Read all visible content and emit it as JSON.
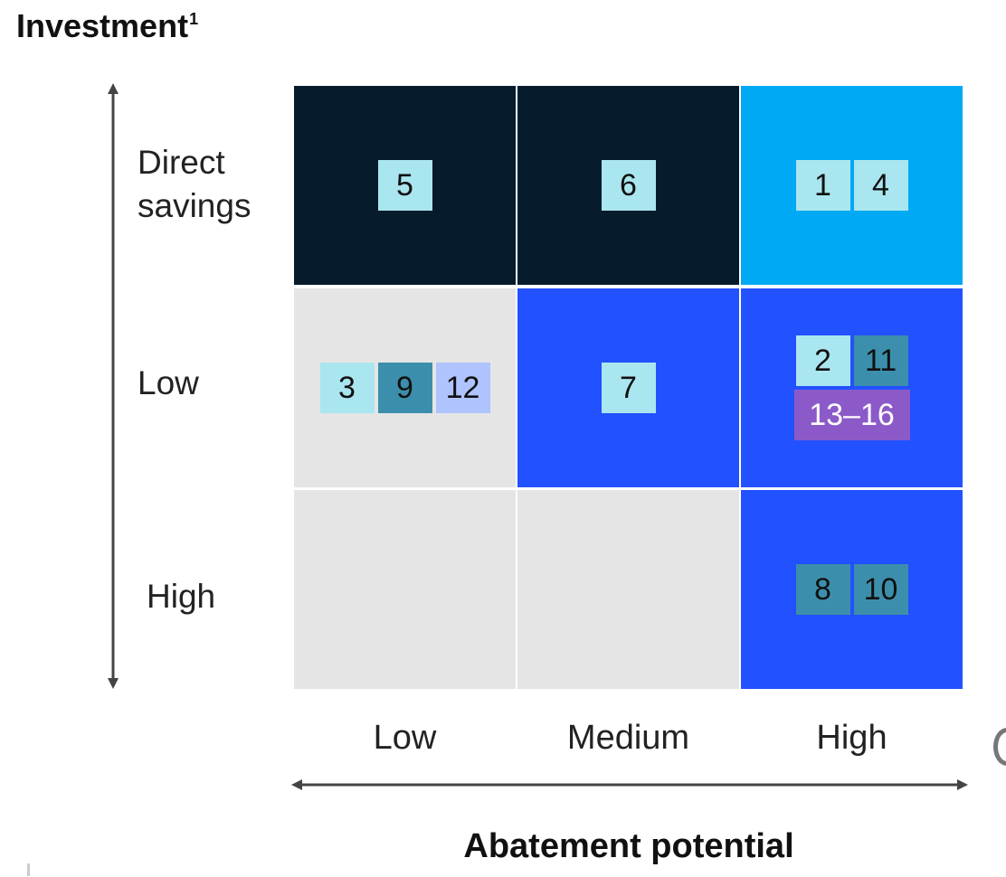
{
  "y_axis_title": "Investment",
  "y_axis_footnote": "1",
  "x_axis_title": "Abatement potential",
  "rows": [
    {
      "label": "Direct savings"
    },
    {
      "label": "Low"
    },
    {
      "label": "High"
    }
  ],
  "columns": [
    {
      "label": "Low"
    },
    {
      "label": "Medium"
    },
    {
      "label": "High"
    }
  ],
  "colors": {
    "dark_navy": "#061c2c",
    "cyan": "#00a9f4",
    "royal_blue": "#2251ff",
    "light_gray": "#e5e5e5",
    "chip_light_cyan": "#aae6f0",
    "chip_teal": "#3c8fac",
    "chip_periwinkle": "#afc3ff",
    "chip_purple": "#8c5ac8",
    "axis": "#444444"
  },
  "cells": [
    {
      "row": 0,
      "col": 0,
      "bg": "dark_navy",
      "chip_rows": [
        [
          {
            "text": "5",
            "color": "chip_light_cyan"
          }
        ]
      ]
    },
    {
      "row": 0,
      "col": 1,
      "bg": "dark_navy",
      "chip_rows": [
        [
          {
            "text": "6",
            "color": "chip_light_cyan"
          }
        ]
      ]
    },
    {
      "row": 0,
      "col": 2,
      "bg": "cyan",
      "chip_rows": [
        [
          {
            "text": "1",
            "color": "chip_light_cyan"
          },
          {
            "text": "4",
            "color": "chip_light_cyan"
          }
        ]
      ]
    },
    {
      "row": 1,
      "col": 0,
      "bg": "light_gray",
      "chip_rows": [
        [
          {
            "text": "3",
            "color": "chip_light_cyan"
          },
          {
            "text": "9",
            "color": "chip_teal"
          },
          {
            "text": "12",
            "color": "chip_periwinkle"
          }
        ]
      ]
    },
    {
      "row": 1,
      "col": 1,
      "bg": "royal_blue",
      "chip_rows": [
        [
          {
            "text": "7",
            "color": "chip_light_cyan"
          }
        ]
      ]
    },
    {
      "row": 1,
      "col": 2,
      "bg": "royal_blue",
      "chip_rows": [
        [
          {
            "text": "2",
            "color": "chip_light_cyan"
          },
          {
            "text": "11",
            "color": "chip_teal"
          }
        ],
        [
          {
            "text": "13–16",
            "color": "chip_purple",
            "wide": true,
            "light_text": true
          }
        ]
      ]
    },
    {
      "row": 2,
      "col": 0,
      "bg": "light_gray",
      "chip_rows": []
    },
    {
      "row": 2,
      "col": 1,
      "bg": "light_gray",
      "chip_rows": []
    },
    {
      "row": 2,
      "col": 2,
      "bg": "royal_blue",
      "chip_rows": [
        [
          {
            "text": "8",
            "color": "chip_teal"
          },
          {
            "text": "10",
            "color": "chip_teal"
          }
        ]
      ]
    }
  ]
}
